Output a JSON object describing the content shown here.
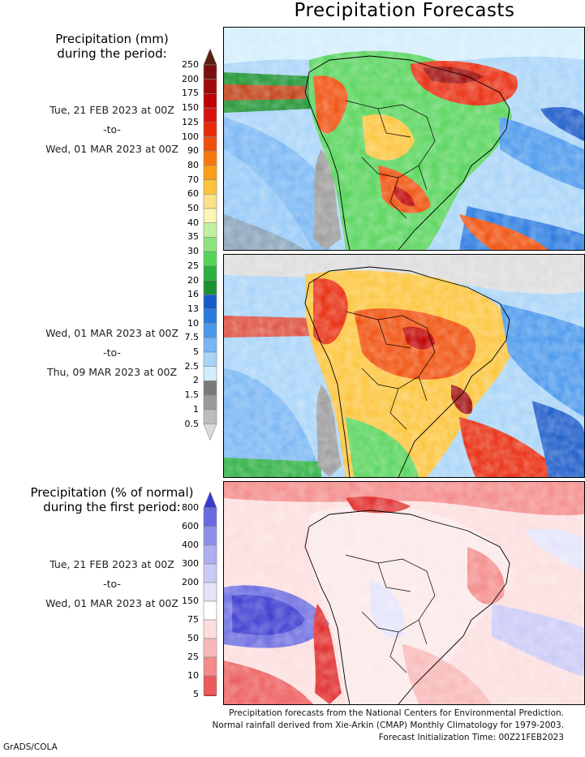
{
  "title": "Precipitation Forecasts",
  "amount_legend": {
    "heading_line1": "Precipitation (mm)",
    "heading_line2": "during the period:",
    "levels": [
      "250",
      "200",
      "175",
      "150",
      "125",
      "100",
      "90",
      "80",
      "70",
      "60",
      "50",
      "40",
      "35",
      "30",
      "25",
      "20",
      "16",
      "13",
      "10",
      "7.5",
      "5",
      "2.5",
      "2",
      "1.5",
      "1",
      "0.5"
    ],
    "colors": [
      "#5a1e12",
      "#7a0f0f",
      "#9e0a0a",
      "#c00000",
      "#d81010",
      "#e82a0c",
      "#f04e0a",
      "#f87810",
      "#fc9e16",
      "#fcc43a",
      "#fce08a",
      "#fcf6b4",
      "#c2f0a2",
      "#8ee47c",
      "#56d45a",
      "#2cb040",
      "#1a9230",
      "#1a5ac8",
      "#2a7ae0",
      "#4a98ec",
      "#78b6f4",
      "#a8d4f8",
      "#d2eefc",
      "#7a7a7a",
      "#9a9a9a",
      "#bcbcbc",
      "#dcdcdc"
    ]
  },
  "period1": {
    "start": "Tue, 21 FEB 2023 at 00Z",
    "to": "-to-",
    "end": "Wed, 01 MAR 2023 at 00Z"
  },
  "period2": {
    "start": "Wed, 01 MAR 2023 at 00Z",
    "to": "-to-",
    "end": "Thu, 09 MAR 2023 at 00Z"
  },
  "percent_legend": {
    "heading_line1": "Precipitation (% of normal)",
    "heading_line2": "during the first period:",
    "levels": [
      "800",
      "600",
      "400",
      "300",
      "200",
      "150",
      "75",
      "50",
      "25",
      "10",
      "5"
    ],
    "colors": [
      "#3a3ad0",
      "#6a6ae0",
      "#8e8ee8",
      "#aeaef0",
      "#cacaf6",
      "#e4e4fb",
      "#ffffff",
      "#fcdede",
      "#f8b8b8",
      "#f48a8a",
      "#ec5a5a",
      "#e02a2a"
    ]
  },
  "period3": {
    "start": "Tue, 21 FEB 2023 at 00Z",
    "to": "-to-",
    "end": "Wed, 01 MAR 2023 at 00Z"
  },
  "footer": {
    "line1": "Precipitation forecasts from the National Centers for Environmental Prediction.",
    "line2": "Normal rainfall derived from Xie-Arkin (CMAP) Monthly Climatology for 1979-2003.",
    "line3": "Forecast Initialization Time: 00Z21FEB2023"
  },
  "credit": "GrADS/COLA"
}
